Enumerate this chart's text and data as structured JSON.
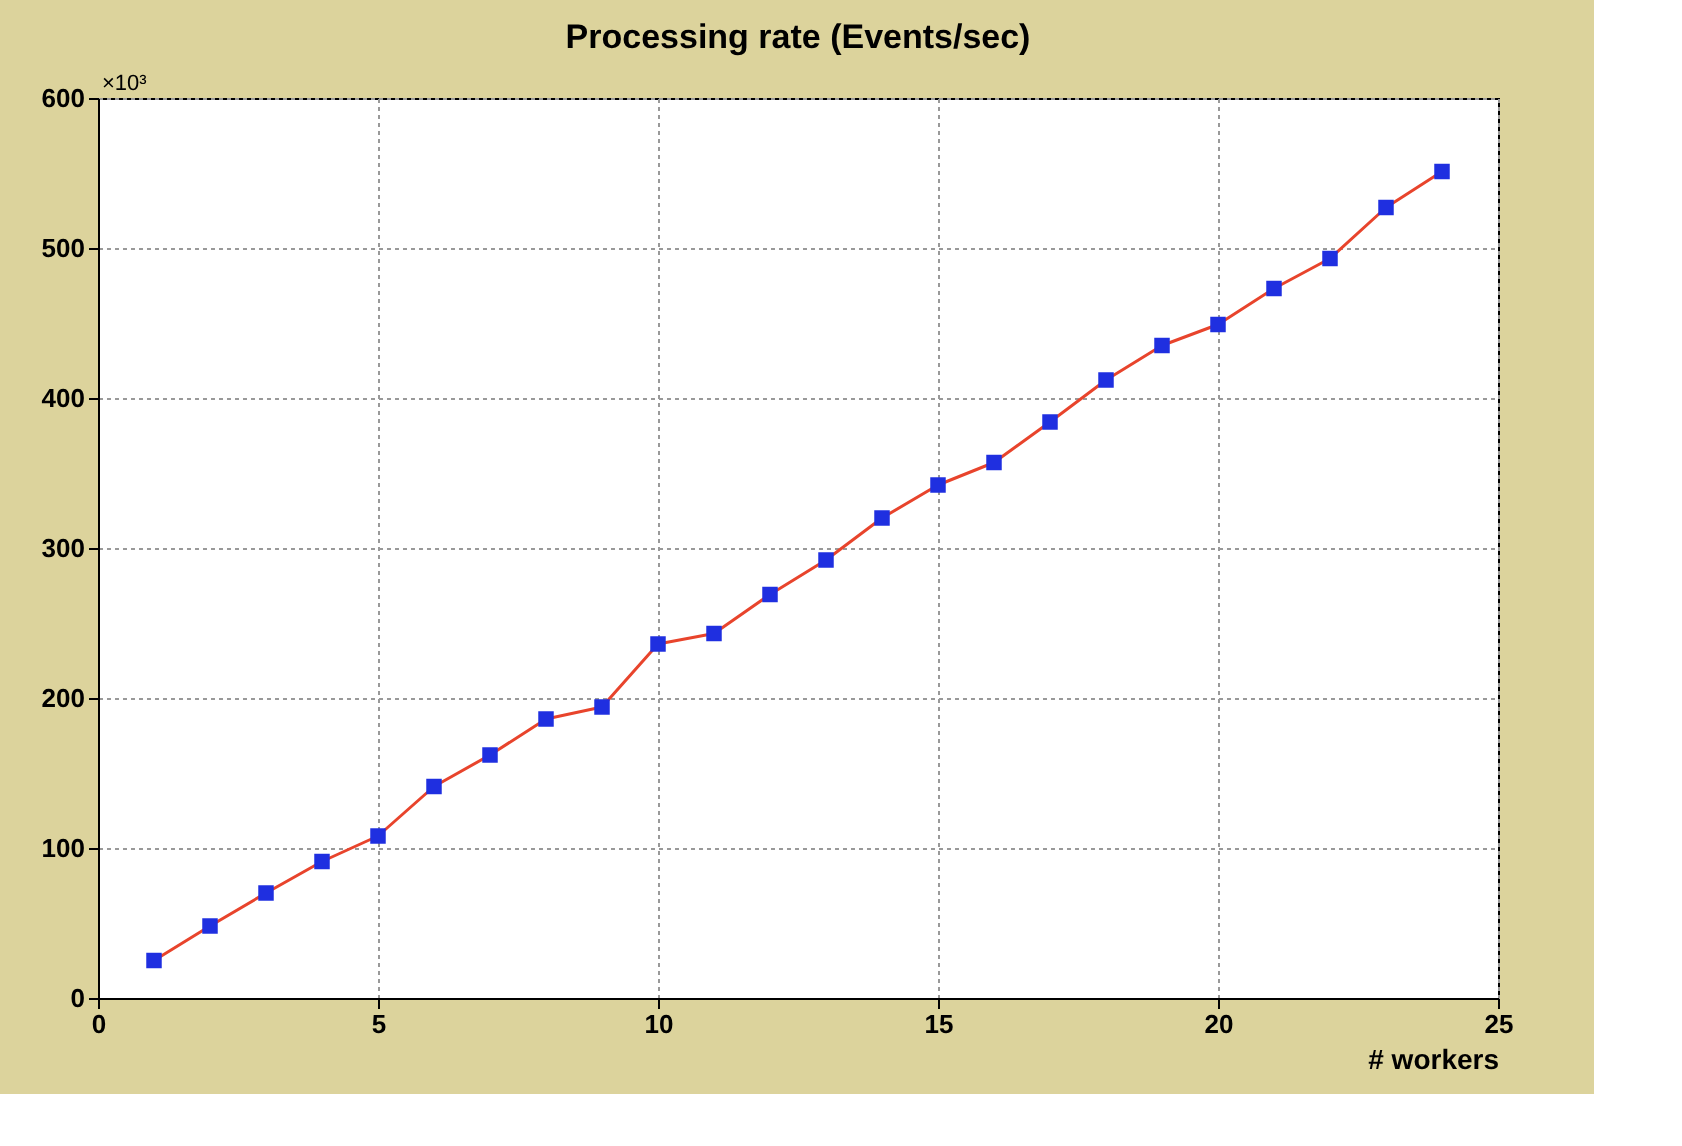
{
  "chart_data": {
    "type": "line",
    "title": "Processing rate (Events/sec)",
    "xlabel": "# workers",
    "x": [
      1,
      2,
      3,
      4,
      5,
      6,
      7,
      8,
      9,
      10,
      11,
      12,
      13,
      14,
      15,
      16,
      17,
      18,
      19,
      20,
      21,
      22,
      23,
      24
    ],
    "series": [
      {
        "color": "#e8442c",
        "values": [
          25,
          48,
          70,
          91,
          108,
          141,
          162,
          186,
          194,
          236,
          243,
          269,
          292,
          320,
          342,
          357,
          384,
          412,
          435,
          449,
          473,
          493,
          527,
          551
        ]
      }
    ],
    "xlim": [
      0,
      25
    ],
    "xticks": [
      0,
      5,
      10,
      15,
      20,
      25
    ],
    "ylim": [
      0,
      600
    ],
    "yticks": [
      0,
      100,
      200,
      300,
      400,
      500,
      600
    ],
    "annotations": [
      "×10³"
    ],
    "grid": true,
    "marker": "square"
  }
}
